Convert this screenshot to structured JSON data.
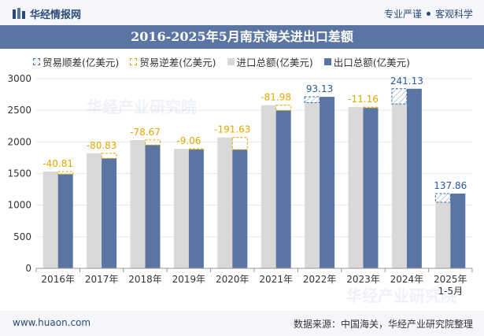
{
  "header": {
    "brand": "华经情报网",
    "tagline_left": "专业严谨",
    "tagline_right": "客观科学"
  },
  "footer": {
    "url": "www.huaon.com",
    "source": "数据来源：中国海关，华经产业研究院整理"
  },
  "watermark": "华经产业研究院",
  "chart_data": {
    "type": "bar",
    "title": "2016-2025年5月南京海关进出口差额",
    "categories": [
      "2016年",
      "2017年",
      "2018年",
      "2019年",
      "2020年",
      "2021年",
      "2022年",
      "2023年",
      "2024年",
      "2025年"
    ],
    "category_sublabels": [
      "",
      "",
      "",
      "",
      "",
      "",
      "",
      "",
      "",
      "1-5月"
    ],
    "ylim": [
      0,
      3000
    ],
    "yticks": [
      0,
      500,
      1000,
      1500,
      2000,
      2500,
      3000
    ],
    "legend_position": "top",
    "legend": [
      "贸易顺差(亿美元)",
      "贸易逆差(亿美元)",
      "进口总额(亿美元)",
      "出口总额(亿美元)"
    ],
    "series": [
      {
        "name": "进口总额(亿美元)",
        "color": "#d9d9d9",
        "values": [
          1530,
          1820,
          2030,
          1890,
          2070,
          2580,
          2620,
          2550,
          2600,
          1045
        ]
      },
      {
        "name": "出口总额(亿美元)",
        "color": "#5a75a2",
        "values": [
          1489,
          1739,
          1951,
          1881,
          1878,
          2498,
          2713,
          2539,
          2841,
          1183
        ]
      }
    ],
    "balance": {
      "values": [
        -40.81,
        -80.83,
        -78.67,
        -9.06,
        -191.63,
        -81.98,
        93.13,
        -11.16,
        241.13,
        137.86
      ],
      "labels": [
        "-40.81",
        "-80.83",
        "-78.67",
        "-9.06",
        "-191.63",
        "-81.98",
        "93.13",
        "-11.16",
        "241.13",
        "137.86"
      ],
      "surplus_color": "#2b5c99",
      "deficit_color": "#e0a800"
    }
  }
}
